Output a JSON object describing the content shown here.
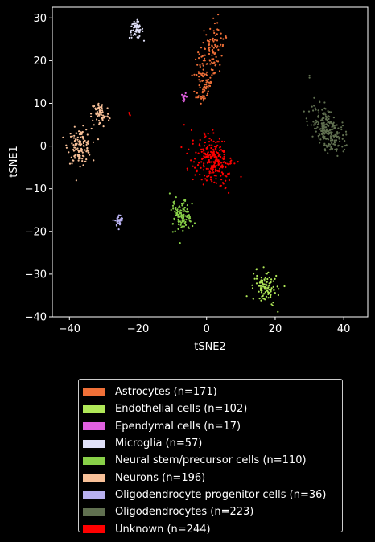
{
  "chart_data": {
    "type": "scatter",
    "title": "",
    "xlabel": "tSNE2",
    "ylabel": "tSNE1",
    "xlim": [
      -45,
      47
    ],
    "ylim": [
      -40,
      32.5
    ],
    "xticks": [
      -40,
      -20,
      0,
      20,
      40
    ],
    "yticks": [
      -40,
      -30,
      -20,
      -10,
      0,
      10,
      20,
      30
    ],
    "grid": false,
    "legend_position": "below",
    "series": [
      {
        "name": "Astrocytes (n=171)",
        "color": "#f07038",
        "clusters": [
          {
            "cx": 1.0,
            "cy": 21,
            "sx": 1.8,
            "sy": 4.0,
            "n": 120,
            "rot": -0.35
          },
          {
            "cx": -0.5,
            "cy": 14,
            "sx": 1.2,
            "sy": 2.5,
            "n": 51,
            "rot": -0.3
          }
        ]
      },
      {
        "name": "Endothelial cells (n=102)",
        "color": "#b0e858",
        "clusters": [
          {
            "cx": 17,
            "cy": -33,
            "sx": 1.5,
            "sy": 2.0,
            "n": 102,
            "rot": 0.8
          }
        ]
      },
      {
        "name": "Ependymal cells (n=17)",
        "color": "#e060e0",
        "clusters": [
          {
            "cx": -6.5,
            "cy": 11.5,
            "sx": 0.4,
            "sy": 0.4,
            "n": 17,
            "rot": 0
          }
        ]
      },
      {
        "name": "Microglia (n=57)",
        "color": "#e0e0f8",
        "clusters": [
          {
            "cx": -20.5,
            "cy": 27.2,
            "sx": 1.0,
            "sy": 1.0,
            "n": 57,
            "rot": 0
          }
        ]
      },
      {
        "name": "Neural stem/precursor cells (n=110)",
        "color": "#88d048",
        "clusters": [
          {
            "cx": -7.0,
            "cy": -16.5,
            "sx": 1.6,
            "sy": 2.0,
            "n": 110,
            "rot": 0.5
          }
        ]
      },
      {
        "name": "Neurons (n=196)",
        "color": "#f8c098",
        "clusters": [
          {
            "cx": -37,
            "cy": 0,
            "sx": 1.7,
            "sy": 2.0,
            "n": 130,
            "rot": 0
          },
          {
            "cx": -31,
            "cy": 7.5,
            "sx": 1.3,
            "sy": 1.6,
            "n": 66,
            "rot": 0
          }
        ]
      },
      {
        "name": "Oligodendrocyte progenitor cells (n=36)",
        "color": "#b8b0f0",
        "clusters": [
          {
            "cx": -25.5,
            "cy": -17.5,
            "sx": 0.6,
            "sy": 0.7,
            "n": 36,
            "rot": 0
          }
        ]
      },
      {
        "name": "Oligodendrocytes (n=223)",
        "color": "#607050",
        "clusters": [
          {
            "cx": 35,
            "cy": 4,
            "sx": 3.0,
            "sy": 1.9,
            "n": 223,
            "rot": -0.85
          }
        ]
      },
      {
        "name": "Unknown (n=244)",
        "color": "#ff0000",
        "clusters": [
          {
            "cx": 2,
            "cy": -3.5,
            "sx": 3.2,
            "sy": 2.3,
            "n": 244,
            "rot": -0.75
          }
        ]
      }
    ],
    "outliers": [
      {
        "series": 8,
        "x": -22.5,
        "y": 7.5
      },
      {
        "series": 8,
        "x": -22.3,
        "y": 7.2
      },
      {
        "series": 8,
        "x": -22.6,
        "y": 7.8
      },
      {
        "series": 7,
        "x": 30,
        "y": 16.5
      },
      {
        "series": 7,
        "x": 30,
        "y": 16.0
      }
    ]
  }
}
